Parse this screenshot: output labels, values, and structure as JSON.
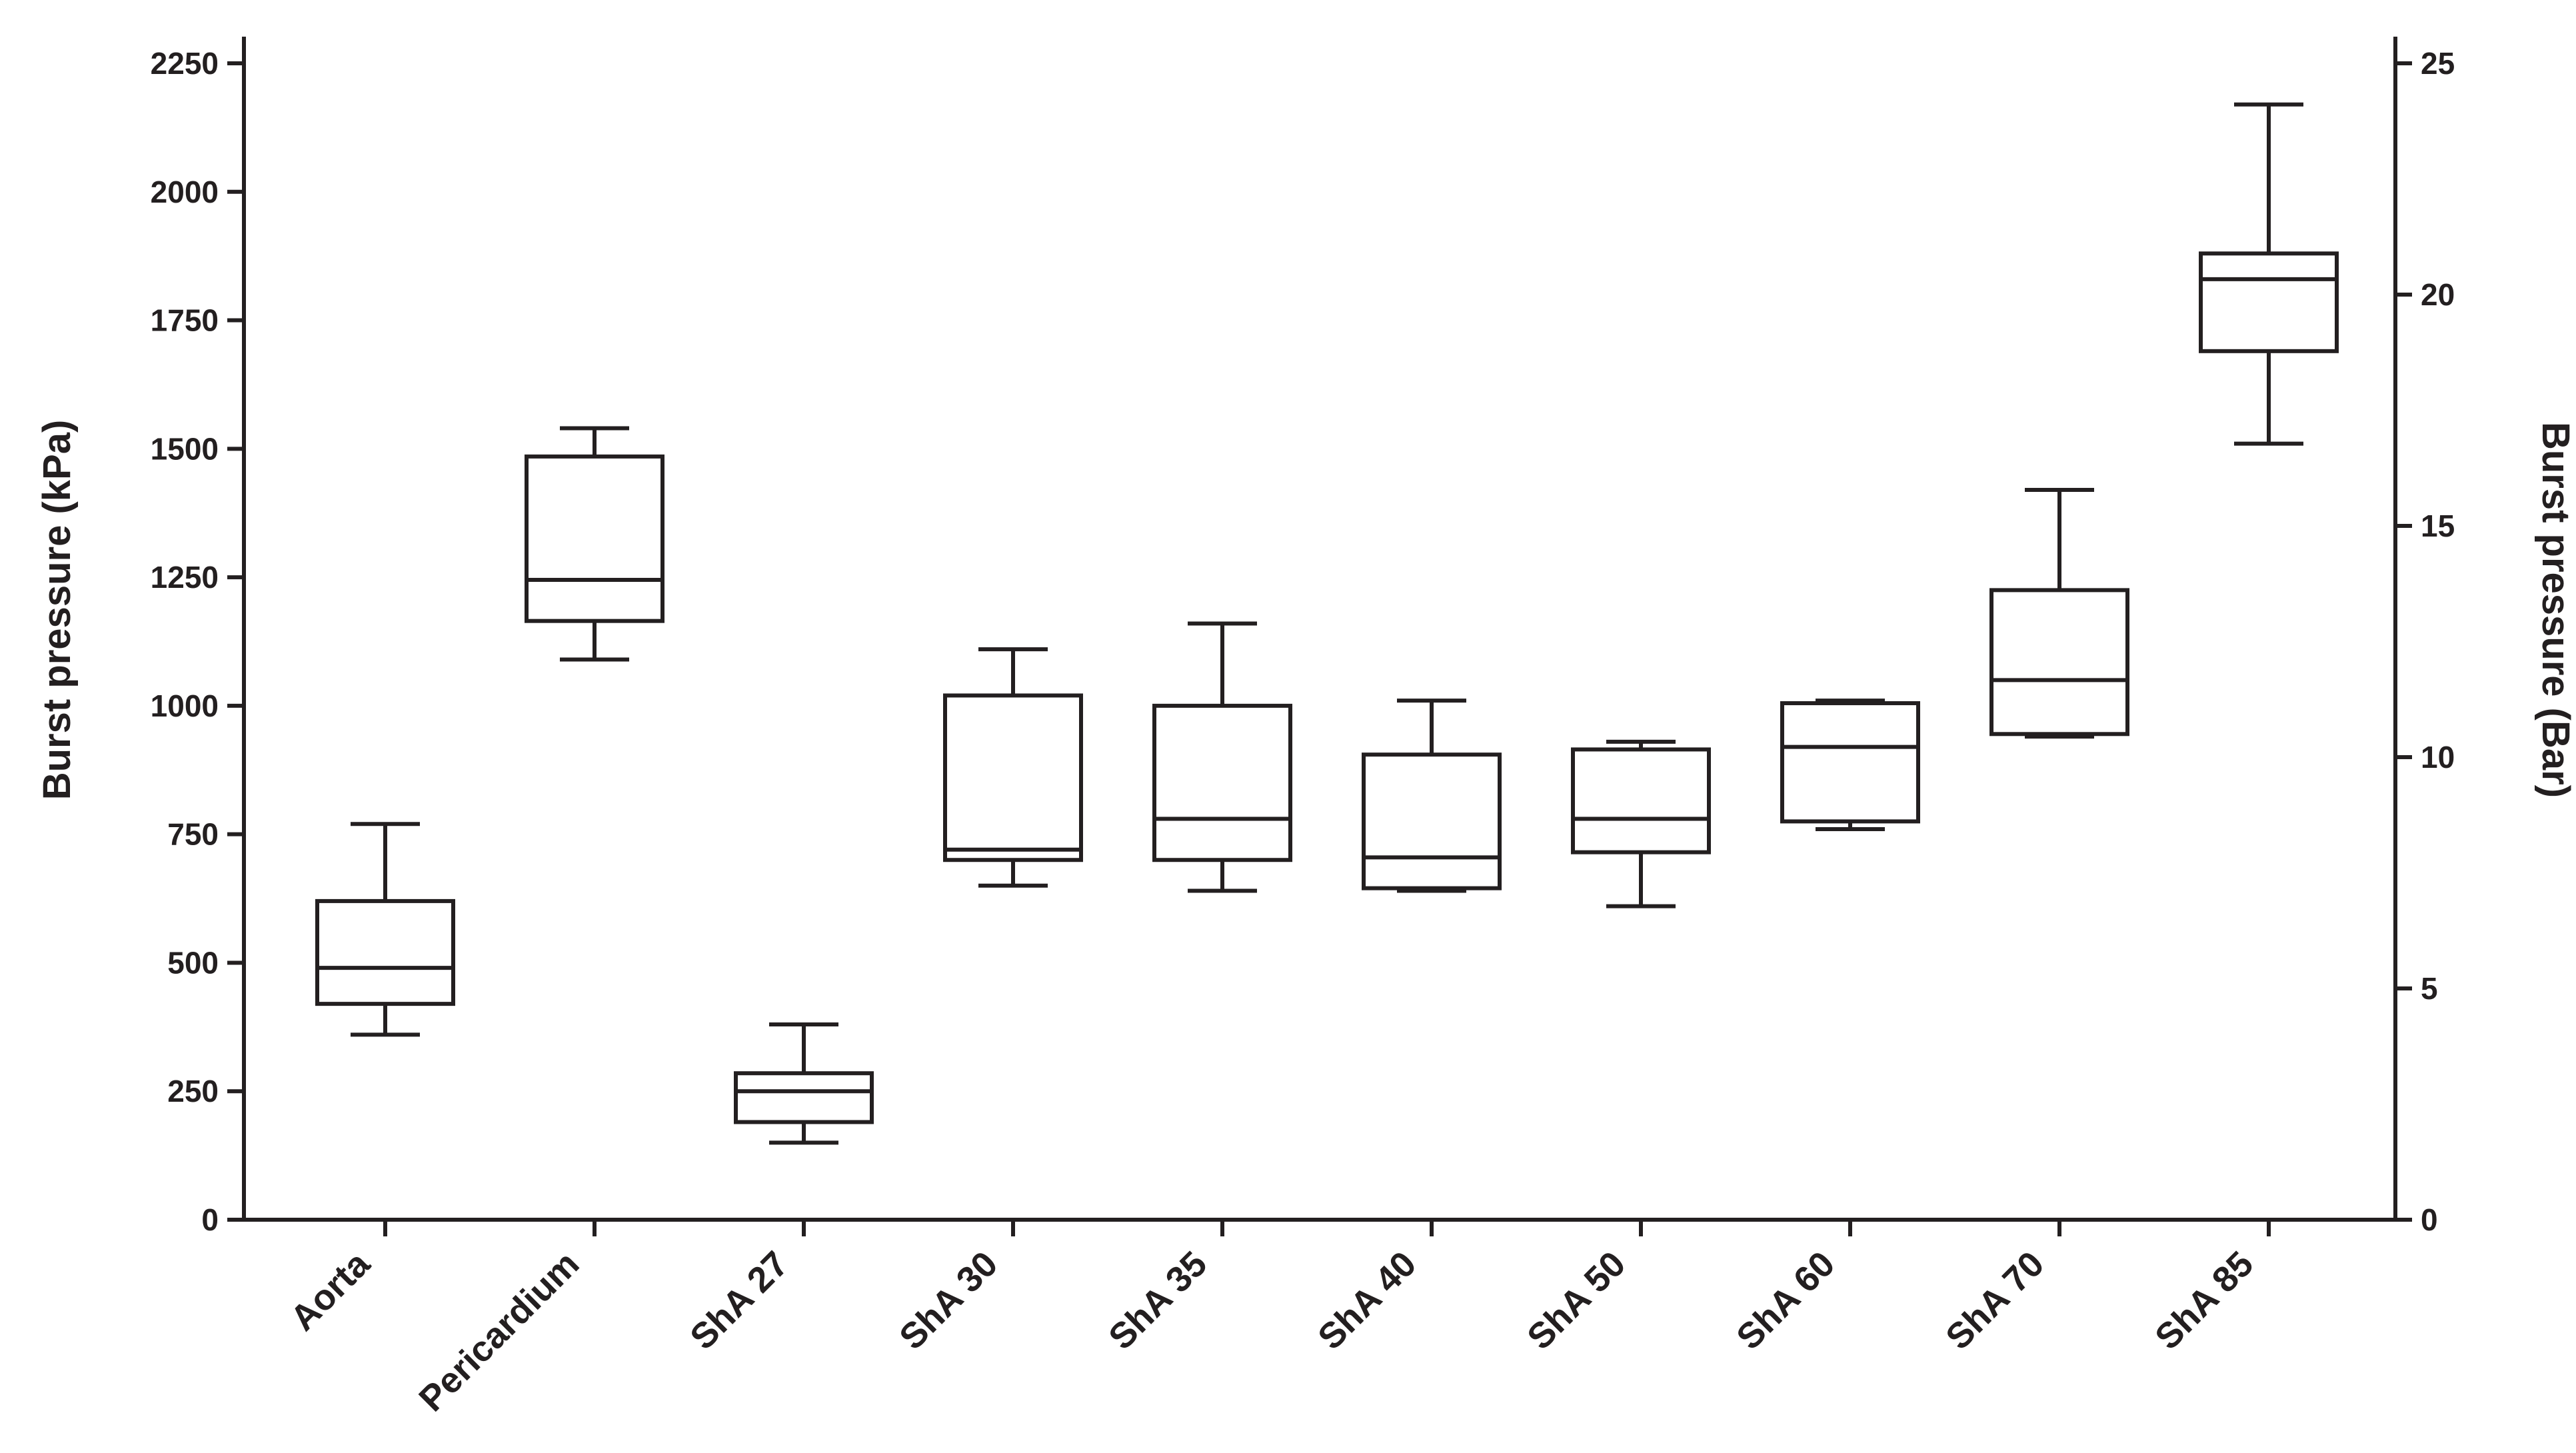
{
  "chart_data": {
    "type": "box",
    "ylabel": "Burst pressure (kPa)",
    "y2label": "Burst pressure (Bar)",
    "ylim": [
      0,
      2250
    ],
    "y2lim": [
      0,
      25
    ],
    "yticks": [
      "0",
      "250",
      "500",
      "750",
      "1000",
      "1250",
      "1500",
      "1750",
      "2000",
      "2250"
    ],
    "y2ticks": [
      "0",
      "5",
      "10",
      "15",
      "20",
      "25"
    ],
    "grid": false,
    "categories": [
      "Aorta",
      "Pericardium",
      "ShA 27",
      "ShA 30",
      "ShA 35",
      "ShA 40",
      "ShA 50",
      "ShA 60",
      "ShA 70",
      "ShA 85"
    ],
    "boxes": [
      {
        "min": 360,
        "q1": 420,
        "median": 490,
        "q3": 620,
        "max": 770
      },
      {
        "min": 1090,
        "q1": 1165,
        "median": 1245,
        "q3": 1485,
        "max": 1540
      },
      {
        "min": 150,
        "q1": 190,
        "median": 250,
        "q3": 285,
        "max": 380
      },
      {
        "min": 650,
        "q1": 700,
        "median": 720,
        "q3": 1020,
        "max": 1110
      },
      {
        "min": 640,
        "q1": 700,
        "median": 780,
        "q3": 1000,
        "max": 1160
      },
      {
        "min": 640,
        "q1": 645,
        "median": 705,
        "q3": 905,
        "max": 1010
      },
      {
        "min": 610,
        "q1": 715,
        "median": 780,
        "q3": 915,
        "max": 930
      },
      {
        "min": 760,
        "q1": 775,
        "median": 920,
        "q3": 1005,
        "max": 1010
      },
      {
        "min": 940,
        "q1": 945,
        "median": 1050,
        "q3": 1225,
        "max": 1420
      },
      {
        "min": 1510,
        "q1": 1690,
        "median": 1830,
        "q3": 1880,
        "max": 2170
      }
    ]
  }
}
